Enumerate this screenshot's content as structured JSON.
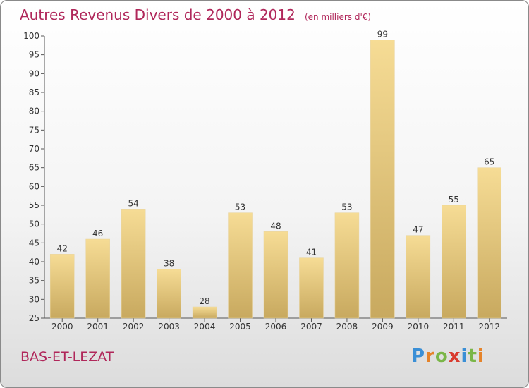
{
  "title": "Autres Revenus Divers de 2000 à 2012",
  "unit": "(en milliers d'€)",
  "place": "BAS-ET-LEZAT",
  "logo": {
    "text": "Proxiti",
    "letters": [
      "P",
      "r",
      "o",
      "x",
      "i",
      "t",
      "i"
    ],
    "colors": [
      "#3a8fd6",
      "#e5832a",
      "#7ab648",
      "#d93b2f",
      "#3a8fd6",
      "#7ab648",
      "#e5832a"
    ]
  },
  "colors": {
    "title": "#b0275a",
    "bar_light": "#f6dc95",
    "bar_dark": "#c8a95f",
    "axis": "#555555"
  },
  "chart_data": {
    "type": "bar",
    "title": "Autres Revenus Divers de 2000 à 2012",
    "xlabel": "",
    "ylabel": "",
    "categories": [
      "2000",
      "2001",
      "2002",
      "2003",
      "2004",
      "2005",
      "2006",
      "2007",
      "2008",
      "2009",
      "2010",
      "2011",
      "2012"
    ],
    "values": [
      42,
      46,
      54,
      38,
      28,
      53,
      48,
      41,
      53,
      99,
      47,
      55,
      65
    ],
    "ylim": [
      25,
      100
    ],
    "yticks": [
      25,
      30,
      35,
      40,
      45,
      50,
      55,
      60,
      65,
      70,
      75,
      80,
      85,
      90,
      95,
      100
    ],
    "grid": false,
    "legend": "none"
  }
}
